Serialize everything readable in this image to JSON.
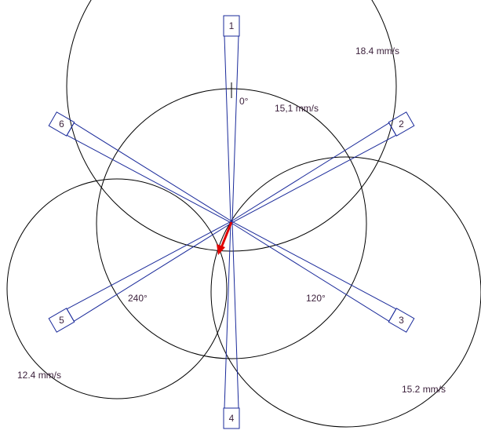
{
  "blades": [
    "1",
    "2",
    "3",
    "4",
    "5",
    "6"
  ],
  "angles": [
    "0°",
    "120°",
    "240°"
  ],
  "readings": [
    "18.4 mm/s",
    "15,1 mm/s",
    "12.4 mm/s",
    "15.2 mm/s"
  ]
}
